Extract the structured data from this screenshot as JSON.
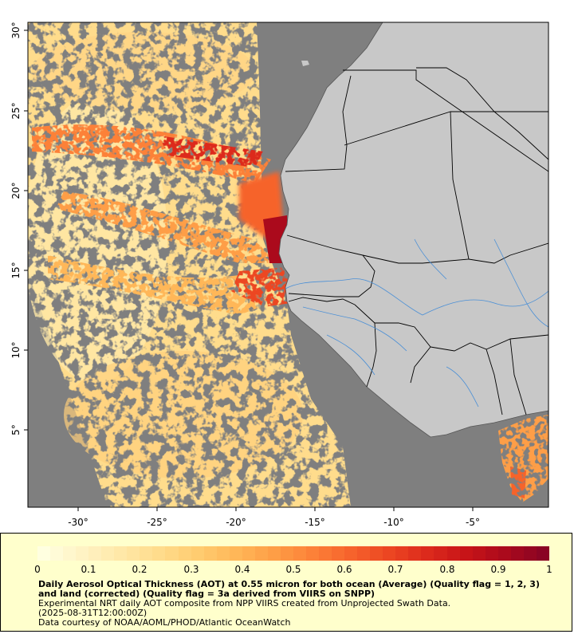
{
  "map": {
    "lon_ticks": [
      "-30°",
      "-25°",
      "-20°",
      "-15°",
      "-10°",
      "-5°"
    ],
    "lat_ticks": [
      "30°",
      "25°",
      "20°",
      "15°",
      "10°",
      "5°"
    ],
    "colors": {
      "no_data": "#7f7f7f",
      "land": "#c8c8c8",
      "borders": "#000000",
      "rivers": "#4a8fd6",
      "coast": "#555555"
    }
  },
  "legend": {
    "ticks": [
      "0",
      "0.1",
      "0.2",
      "0.3",
      "0.4",
      "0.5",
      "0.6",
      "0.7",
      "0.8",
      "0.9",
      "1"
    ],
    "colors": [
      "#ffffe0",
      "#fff3c4",
      "#ffe8a8",
      "#ffdc8c",
      "#ffcc70",
      "#ffb758",
      "#fe9e46",
      "#fc8138",
      "#f6632c",
      "#ec4622",
      "#dc2a1c",
      "#c71418",
      "#ab0a1c",
      "#8a0424"
    ],
    "caption_bold": "Daily Aerosol Optical Thickness (AOT) at 0.55 micron for both ocean (Average) (Quality flag = 1, 2, 3) and land (corrected) (Quality flag = 3a derived from VIIRS on SNPP)",
    "caption_line1": "Experimental NRT daily AOT composite from NPP VIIRS created from Unprojected Swath Data.",
    "caption_line2": "(2025-08-31T12:00:00Z)",
    "caption_line3": "Data courtesy of NOAA/AOML/PHOD/Atlantic OceanWatch"
  }
}
